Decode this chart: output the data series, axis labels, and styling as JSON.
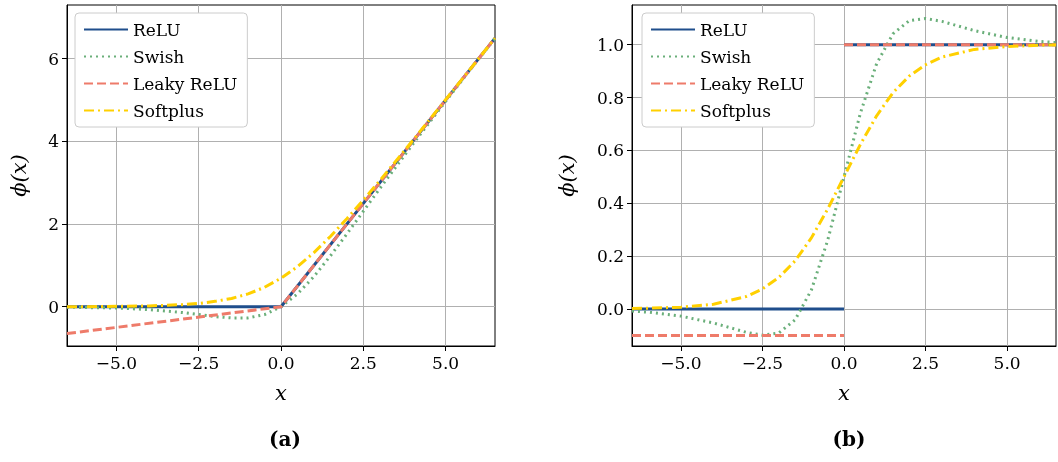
{
  "chart_data": [
    {
      "type": "line",
      "title": "(a)",
      "xlabel": "x",
      "ylabel": "ϕ(x)",
      "xlim": [
        -6.5,
        6.5
      ],
      "ylim": [
        -0.95,
        7.3
      ],
      "xticks": [
        {
          "value": -5,
          "label": "−5.0"
        },
        {
          "value": -2.5,
          "label": "−2.5"
        },
        {
          "value": 0,
          "label": "0.0"
        },
        {
          "value": 2.5,
          "label": "2.5"
        },
        {
          "value": 5,
          "label": "5.0"
        }
      ],
      "yticks": [
        0,
        2,
        4,
        6
      ],
      "grid": true,
      "legend": "top left",
      "marker": "none",
      "series": [
        {
          "name": "ReLU",
          "color": "#1f4e8c",
          "line_style": "solid",
          "x": [
            -6.5,
            0,
            6.5
          ],
          "values": [
            0,
            0,
            6.5
          ]
        },
        {
          "name": "Swish",
          "color": "#6aaf7a",
          "line_style": "dotted",
          "x": [
            -6.5,
            -6,
            -5,
            -4,
            -3,
            -2.5,
            -2,
            -1.5,
            -1,
            -0.5,
            0,
            0.5,
            1,
            1.5,
            2,
            2.5,
            3,
            4,
            5,
            6,
            6.5
          ],
          "values": [
            -0.01,
            -0.02,
            -0.03,
            -0.07,
            -0.14,
            -0.19,
            -0.24,
            -0.27,
            -0.27,
            -0.19,
            0,
            0.31,
            0.73,
            1.23,
            1.76,
            2.31,
            2.86,
            3.93,
            4.97,
            5.99,
            6.49
          ]
        },
        {
          "name": "Leaky ReLU",
          "color": "#ee7b6a",
          "line_style": "dashed",
          "x": [
            -6.5,
            0,
            6.5
          ],
          "values": [
            -0.65,
            0,
            6.5
          ]
        },
        {
          "name": "Softplus",
          "color": "#ffd000",
          "line_style": "dashdot",
          "x": [
            -6.5,
            -6,
            -5,
            -4,
            -3,
            -2.5,
            -2,
            -1.5,
            -1,
            -0.5,
            0,
            0.5,
            1,
            1.5,
            2,
            2.5,
            3,
            4,
            5,
            6,
            6.5
          ],
          "values": [
            0,
            0,
            0.01,
            0.02,
            0.05,
            0.08,
            0.13,
            0.2,
            0.31,
            0.47,
            0.69,
            0.97,
            1.31,
            1.7,
            2.13,
            2.58,
            3.05,
            4.02,
            5.01,
            6,
            6.5
          ]
        }
      ]
    },
    {
      "type": "line",
      "title": "(b)",
      "xlabel": "x",
      "ylabel": "ϕ(x)",
      "xlim": [
        -6.5,
        6.5
      ],
      "ylim": [
        -0.14,
        1.15
      ],
      "xticks": [
        {
          "value": -5,
          "label": "−5.0"
        },
        {
          "value": -2.5,
          "label": "−2.5"
        },
        {
          "value": 0,
          "label": "0.0"
        },
        {
          "value": 2.5,
          "label": "2.5"
        },
        {
          "value": 5,
          "label": "5.0"
        }
      ],
      "yticks": [
        {
          "value": 0,
          "label": "0.0"
        },
        {
          "value": 0.2,
          "label": "0.2"
        },
        {
          "value": 0.4,
          "label": "0.4"
        },
        {
          "value": 0.6,
          "label": "0.6"
        },
        {
          "value": 0.8,
          "label": "0.8"
        },
        {
          "value": 1,
          "label": "1.0"
        }
      ],
      "grid": true,
      "legend": "top left",
      "marker": "none",
      "series": [
        {
          "name": "ReLU",
          "color": "#1f4e8c",
          "line_style": "solid",
          "x": [
            -6.5,
            0,
            null,
            0,
            6.5
          ],
          "values": [
            0,
            0,
            null,
            1,
            1
          ]
        },
        {
          "name": "Swish",
          "color": "#6aaf7a",
          "line_style": "dotted",
          "x": [
            -6.5,
            -6,
            -5,
            -4,
            -3,
            -2.5,
            -2,
            -1.5,
            -1,
            -0.5,
            0,
            0.5,
            1,
            1.5,
            2,
            2.5,
            3,
            4,
            5,
            6,
            6.5
          ],
          "values": [
            -0.008,
            -0.012,
            -0.027,
            -0.053,
            -0.088,
            -0.099,
            -0.091,
            -0.041,
            0.072,
            0.26,
            0.5,
            0.74,
            0.928,
            1.041,
            1.091,
            1.099,
            1.088,
            1.053,
            1.027,
            1.012,
            1.008
          ]
        },
        {
          "name": "Leaky ReLU",
          "color": "#ee7b6a",
          "line_style": "dashed",
          "x": [
            -6.5,
            0,
            null,
            0,
            6.5
          ],
          "values": [
            -0.1,
            -0.1,
            null,
            1,
            1
          ]
        },
        {
          "name": "Softplus",
          "color": "#ffd000",
          "line_style": "dashdot",
          "x": [
            -6.5,
            -6,
            -5,
            -4,
            -3,
            -2.5,
            -2,
            -1.5,
            -1,
            -0.5,
            0,
            0.5,
            1,
            1.5,
            2,
            2.5,
            3,
            4,
            5,
            6,
            6.5
          ],
          "values": [
            0.002,
            0.003,
            0.007,
            0.018,
            0.047,
            0.076,
            0.119,
            0.182,
            0.269,
            0.378,
            0.5,
            0.622,
            0.731,
            0.818,
            0.881,
            0.924,
            0.953,
            0.982,
            0.993,
            0.998,
            0.999
          ]
        }
      ]
    }
  ]
}
